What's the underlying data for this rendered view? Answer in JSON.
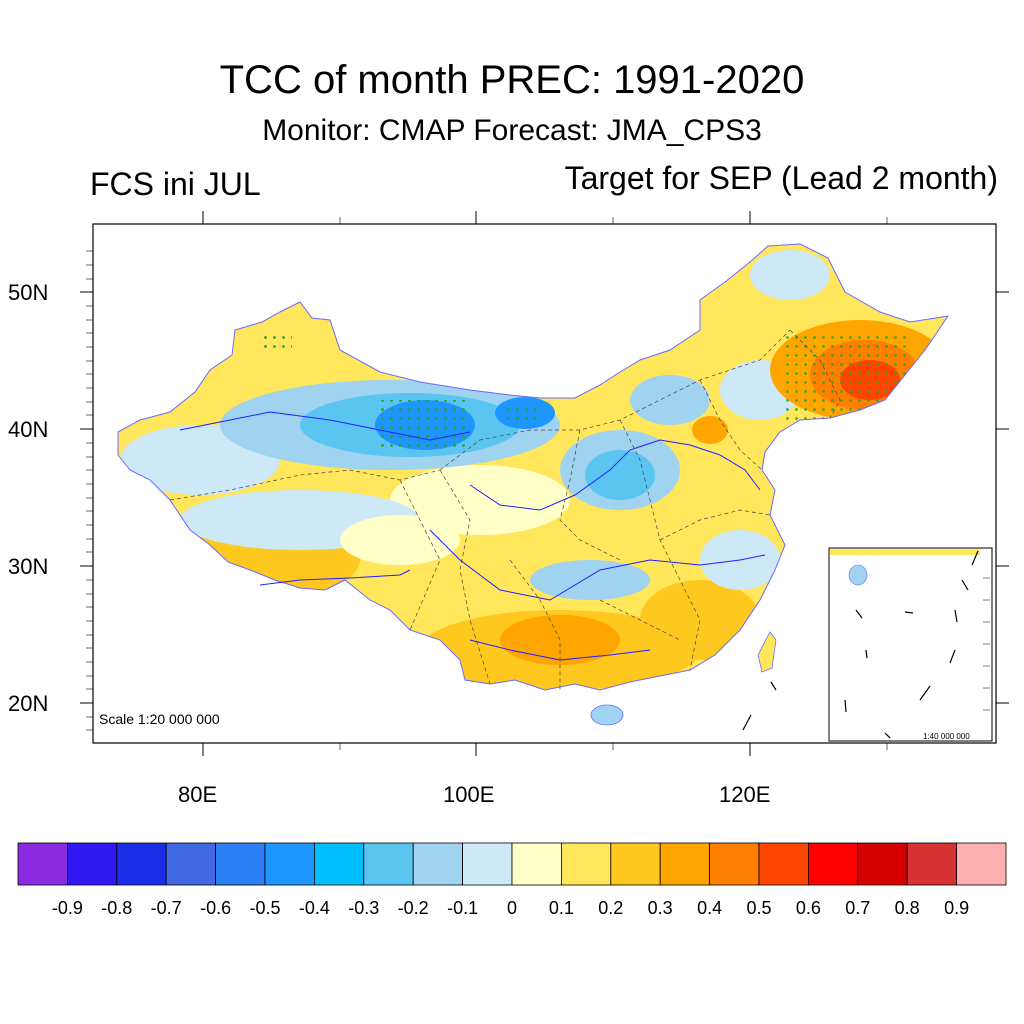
{
  "title": "TCC of month PREC: 1991-2020",
  "subtitle": "Monitor: CMAP   Forecast: JMA_CPS3",
  "left_label": "FCS ini JUL",
  "right_label": "Target for SEP (Lead 2 month)",
  "lat_labels": [
    "50N",
    "40N",
    "30N",
    "20N"
  ],
  "lon_labels": [
    "80E",
    "100E",
    "120E"
  ],
  "scale_text": "Scale 1:20 000 000",
  "inset_scale_text": "1:40 000 000",
  "colorbar": {
    "colors": [
      "#8a2be2",
      "#3218f0",
      "#1c2de8",
      "#4169e1",
      "#2d7ff5",
      "#1e96ff",
      "#00bfff",
      "#5ac5f0",
      "#a0d3f0",
      "#cde8f7",
      "#ffffc8",
      "#ffe65a",
      "#ffc81e",
      "#ffa500",
      "#ff7f00",
      "#ff4500",
      "#ff0000",
      "#d70000",
      "#d73232",
      "#ffafaf"
    ],
    "labels": [
      "-0.9",
      "-0.8",
      "-0.7",
      "-0.6",
      "-0.5",
      "-0.4",
      "-0.3",
      "-0.2",
      "-0.1",
      "0",
      "0.1",
      "0.2",
      "0.3",
      "0.4",
      "0.5",
      "0.6",
      "0.7",
      "0.8",
      "0.9"
    ]
  },
  "colors": {
    "dot_significance": "#2ca02c",
    "river": "#2020ff",
    "border": "#444444"
  }
}
